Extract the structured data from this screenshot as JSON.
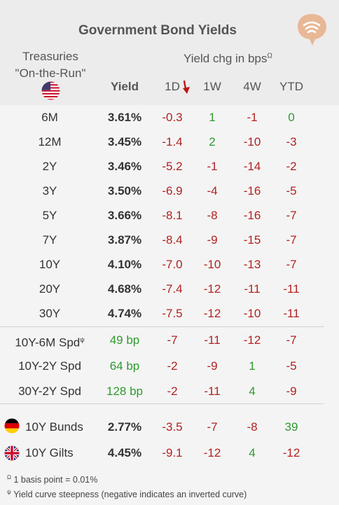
{
  "title": "Government Bond Yields",
  "header": {
    "treasuries_line1": "Treasuries",
    "treasuries_line2": "\"On-the-Run\"",
    "yield": "Yield",
    "chg": "Yield chg in bps",
    "chg_mark": "Ω",
    "cols": [
      "1D",
      "1W",
      "4W",
      "YTD"
    ]
  },
  "treasuries": [
    {
      "label": "6M",
      "yield": "3.61%",
      "d1": "-0.3",
      "w1": "1",
      "w4": "-1",
      "ytd": "0"
    },
    {
      "label": "12M",
      "yield": "3.45%",
      "d1": "-1.4",
      "w1": "2",
      "w4": "-10",
      "ytd": "-3"
    },
    {
      "label": "2Y",
      "yield": "3.46%",
      "d1": "-5.2",
      "w1": "-1",
      "w4": "-14",
      "ytd": "-2"
    },
    {
      "label": "3Y",
      "yield": "3.50%",
      "d1": "-6.9",
      "w1": "-4",
      "w4": "-16",
      "ytd": "-5"
    },
    {
      "label": "5Y",
      "yield": "3.66%",
      "d1": "-8.1",
      "w1": "-8",
      "w4": "-16",
      "ytd": "-7"
    },
    {
      "label": "7Y",
      "yield": "3.87%",
      "d1": "-8.4",
      "w1": "-9",
      "w4": "-15",
      "ytd": "-7"
    },
    {
      "label": "10Y",
      "yield": "4.10%",
      "d1": "-7.0",
      "w1": "-10",
      "w4": "-13",
      "ytd": "-7"
    },
    {
      "label": "20Y",
      "yield": "4.68%",
      "d1": "-7.4",
      "w1": "-12",
      "w4": "-11",
      "ytd": "-11"
    },
    {
      "label": "30Y",
      "yield": "4.74%",
      "d1": "-7.5",
      "w1": "-12",
      "w4": "-10",
      "ytd": "-11"
    }
  ],
  "spreads": [
    {
      "label": "10Y-6M Spd",
      "mark": "ψ",
      "yield": "49 bp",
      "d1": "-7",
      "w1": "-11",
      "w4": "-12",
      "ytd": "-7"
    },
    {
      "label": "10Y-2Y Spd",
      "mark": "",
      "yield": "64 bp",
      "d1": "-2",
      "w1": "-9",
      "w4": "1",
      "ytd": "-5"
    },
    {
      "label": "30Y-2Y Spd",
      "mark": "",
      "yield": "128 bp",
      "d1": "-2",
      "w1": "-11",
      "w4": "4",
      "ytd": "-9"
    }
  ],
  "foreign": [
    {
      "label": "10Y Bunds",
      "flag": "germany-flag-icon",
      "yield": "2.77%",
      "d1": "-3.5",
      "w1": "-7",
      "w4": "-8",
      "ytd": "39"
    },
    {
      "label": "10Y Gilts",
      "flag": "uk-flag-icon",
      "yield": "4.45%",
      "d1": "-9.1",
      "w1": "-12",
      "w4": "4",
      "ytd": "-12"
    }
  ],
  "footnotes": {
    "f1_mark": "Ω",
    "f1": "1 basis point = 0.01%",
    "f2_mark": "ψ",
    "f2": "Yield curve steepness (negative indicates an inverted curve)"
  },
  "colors": {
    "negative": "#b22222",
    "positive": "#2e9a2e",
    "logo": "#e8b896"
  },
  "icons": [
    "wifi-logo-icon",
    "us-flag-icon",
    "down-arrow-icon"
  ]
}
